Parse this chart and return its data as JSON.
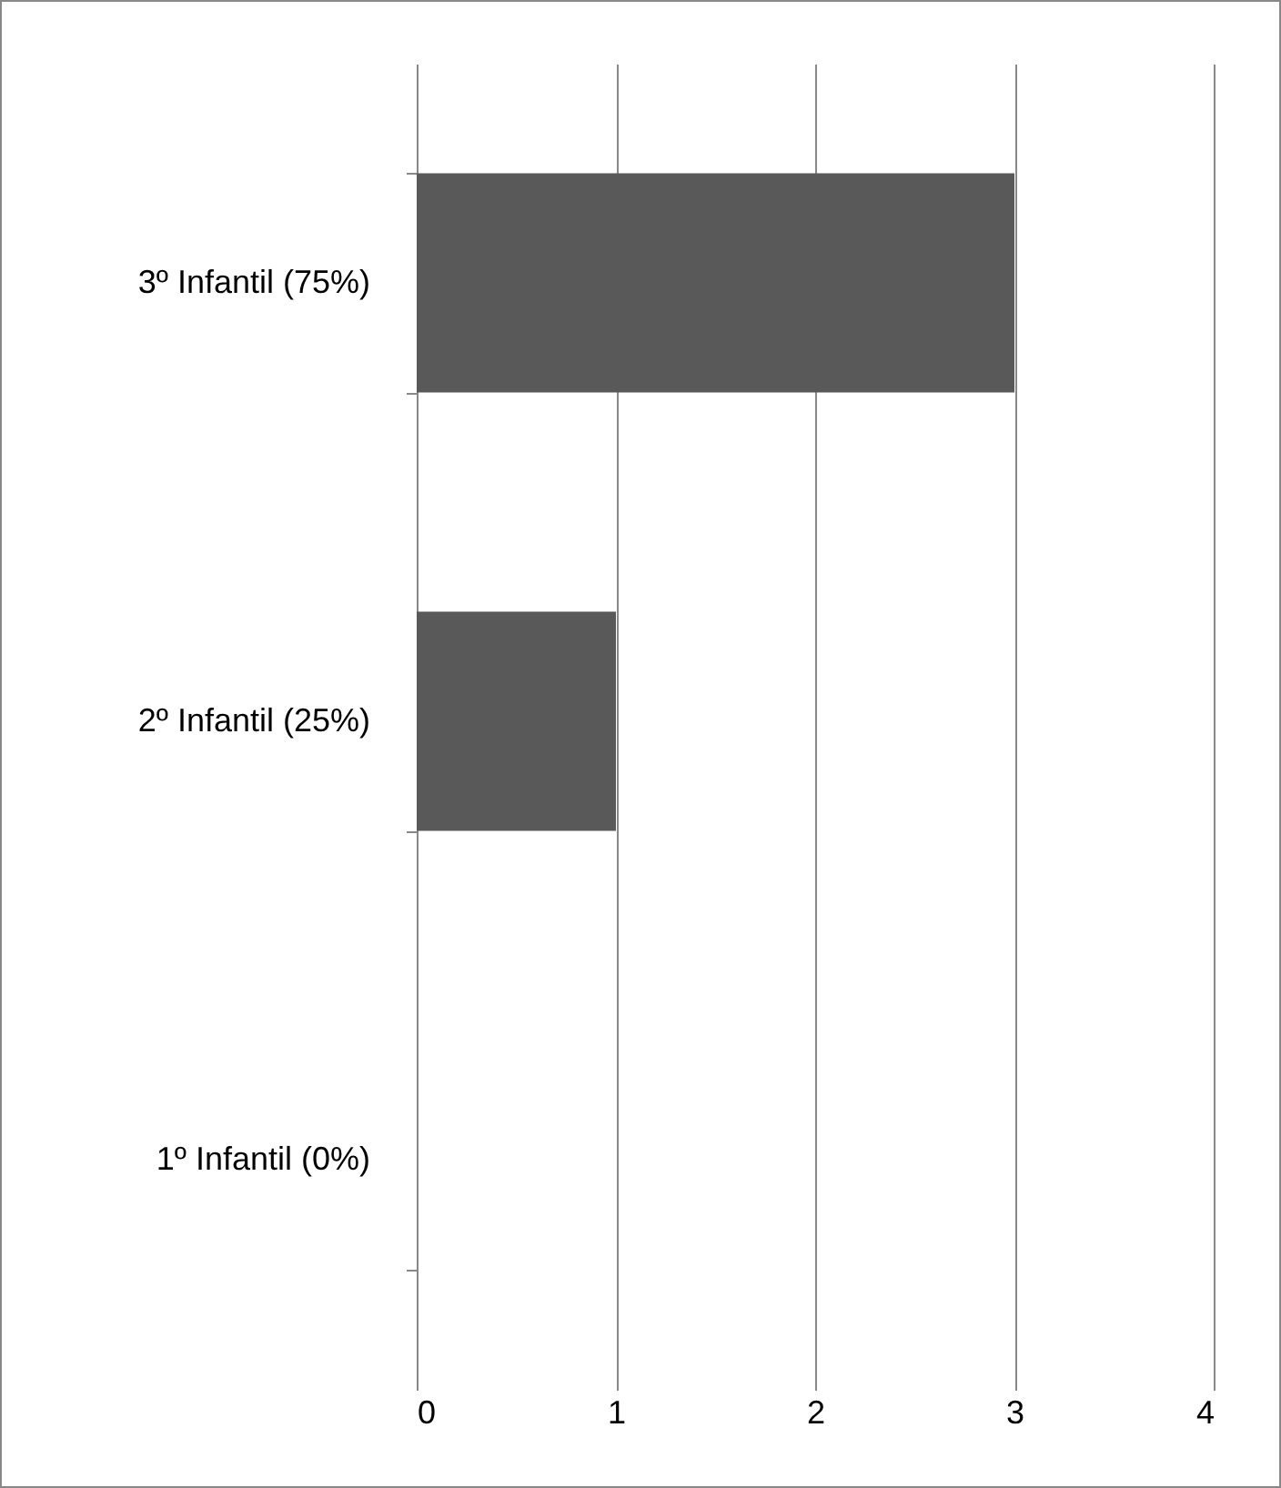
{
  "chart_data": {
    "type": "bar",
    "orientation": "horizontal",
    "categories": [
      "3º Infantil (75%)",
      "2º Infantil (25%)",
      "1º Infantil (0%)"
    ],
    "values": [
      3,
      1,
      0
    ],
    "color": "#595959",
    "xlim": [
      0,
      4
    ],
    "xticks": [
      0,
      1,
      2,
      3,
      4
    ],
    "grid": "x"
  }
}
